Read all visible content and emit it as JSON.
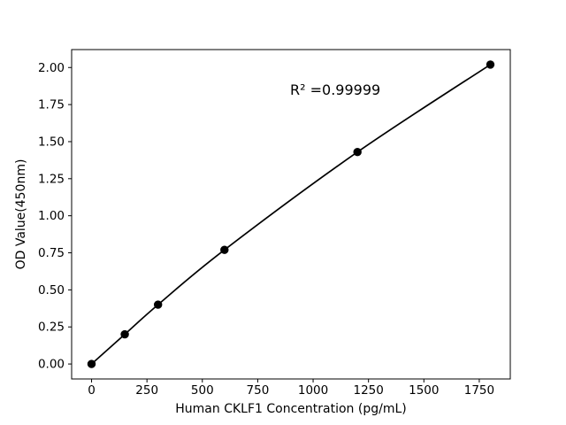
{
  "figure": {
    "background": "#ffffff"
  },
  "colors": {
    "background": "#ffffff",
    "axis": "#000000",
    "line": "#000000",
    "marker": "#000000",
    "text": "#000000"
  },
  "chart_data": {
    "type": "line",
    "title": "",
    "xlabel": "Human CKLF1 Concentration (pg/mL)",
    "ylabel": "OD Value(450nm)",
    "x": [
      0,
      150,
      300,
      600,
      1200,
      1800
    ],
    "y": [
      0.0,
      0.2,
      0.4,
      0.77,
      1.43,
      2.02
    ],
    "xticks": [
      0,
      250,
      500,
      750,
      1000,
      1250,
      1500,
      1750
    ],
    "yticks": [
      0.0,
      0.25,
      0.5,
      0.75,
      1.0,
      1.25,
      1.5,
      1.75,
      2.0
    ],
    "xlim": [
      -90,
      1890
    ],
    "ylim": [
      -0.101,
      2.121
    ],
    "grid": false,
    "legend": null,
    "marker": "circle",
    "line_width": 1.7,
    "marker_radius": 4.7,
    "annotation": {
      "text": "R² =0.99999",
      "x": 1100,
      "y": 1.85
    }
  }
}
